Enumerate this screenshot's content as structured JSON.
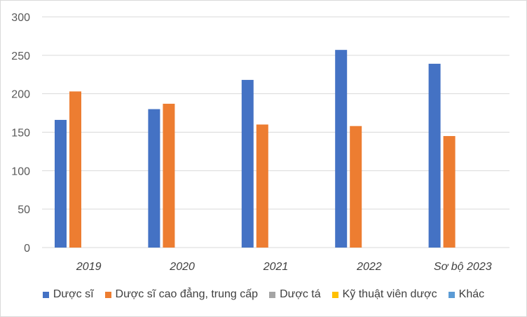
{
  "chart_data": {
    "type": "bar",
    "categories": [
      "2019",
      "2020",
      "2021",
      "2022",
      "Sơ bộ 2023"
    ],
    "series": [
      {
        "name": "Dược sĩ",
        "color": "#4472C4",
        "values": [
          166,
          180,
          218,
          257,
          239
        ]
      },
      {
        "name": "Dược sĩ cao đẳng, trung cấp",
        "color": "#ED7D31",
        "values": [
          203,
          187,
          160,
          158,
          145
        ]
      },
      {
        "name": "Dược tá",
        "color": "#A5A5A5",
        "values": [
          0,
          0,
          0,
          0,
          0
        ]
      },
      {
        "name": "Kỹ thuật viên dược",
        "color": "#FFC000",
        "values": [
          0,
          0,
          0,
          0,
          0
        ]
      },
      {
        "name": "Khác",
        "color": "#5B9BD5",
        "values": [
          0,
          0,
          0,
          0,
          0
        ]
      }
    ],
    "yticks": [
      "0",
      "50",
      "100",
      "150",
      "200",
      "250",
      "300"
    ],
    "ylim": [
      0,
      300
    ],
    "grid": true,
    "legend_position": "bottom"
  }
}
